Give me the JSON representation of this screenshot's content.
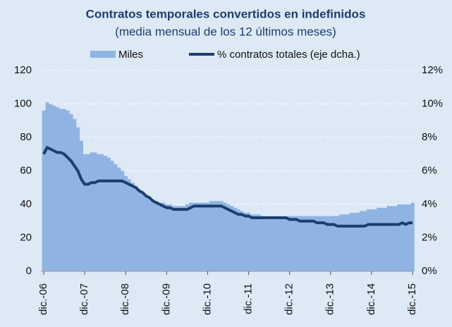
{
  "chart_data": {
    "type": "bar",
    "title": "Contratos temporales convertidos en indefinidos",
    "subtitle": "(media mensual de los 12 últimos meses)",
    "categories": [
      "dic.-06",
      null,
      null,
      null,
      null,
      null,
      null,
      null,
      null,
      null,
      null,
      null,
      "dic.-07",
      null,
      null,
      null,
      null,
      null,
      null,
      null,
      null,
      null,
      null,
      null,
      "dic.-08",
      null,
      null,
      null,
      null,
      null,
      null,
      null,
      null,
      null,
      null,
      null,
      "dic.-09",
      null,
      null,
      null,
      null,
      null,
      null,
      null,
      null,
      null,
      null,
      null,
      "dic.-10",
      null,
      null,
      null,
      null,
      null,
      null,
      null,
      null,
      null,
      null,
      null,
      "dic.-11",
      null,
      null,
      null,
      null,
      null,
      null,
      null,
      null,
      null,
      null,
      null,
      "dic.-12",
      null,
      null,
      null,
      null,
      null,
      null,
      null,
      null,
      null,
      null,
      null,
      "dic.-13",
      null,
      null,
      null,
      null,
      null,
      null,
      null,
      null,
      null,
      null,
      null,
      "dic.-14",
      null,
      null,
      null,
      null,
      null,
      null,
      null,
      null,
      null,
      null,
      null,
      "dic.-15"
    ],
    "series": [
      {
        "name": "Miles",
        "type": "bar",
        "color": "#8fb4e3",
        "values": [
          96,
          101,
          100,
          99,
          98,
          97,
          97,
          96,
          94,
          91,
          86,
          78,
          70,
          70,
          71,
          71,
          70,
          70,
          69,
          68,
          66,
          64,
          62,
          60,
          57,
          55,
          53,
          51,
          49,
          47,
          45,
          44,
          43,
          42,
          41,
          41,
          40,
          40,
          39,
          39,
          39,
          39,
          40,
          41,
          41,
          41,
          41,
          41,
          41,
          42,
          42,
          42,
          42,
          41,
          40,
          39,
          38,
          37,
          36,
          35,
          35,
          34,
          34,
          34,
          33,
          33,
          33,
          33,
          33,
          33,
          33,
          33,
          33,
          33,
          33,
          33,
          33,
          33,
          33,
          33,
          33,
          33,
          33,
          33,
          33,
          33,
          33,
          34,
          34,
          34,
          35,
          35,
          35,
          36,
          36,
          37,
          37,
          37,
          38,
          38,
          38,
          39,
          39,
          39,
          40,
          40,
          40,
          40,
          41
        ]
      },
      {
        "name": "% contratos totales (eje dcha.)",
        "type": "line",
        "axis": "y2",
        "color": "#1c3d6e",
        "values": [
          7.0,
          7.4,
          7.3,
          7.2,
          7.1,
          7.1,
          7.0,
          6.8,
          6.6,
          6.3,
          6.0,
          5.5,
          5.2,
          5.2,
          5.3,
          5.3,
          5.4,
          5.4,
          5.4,
          5.4,
          5.4,
          5.4,
          5.4,
          5.4,
          5.3,
          5.2,
          5.1,
          5.0,
          4.8,
          4.7,
          4.5,
          4.4,
          4.2,
          4.1,
          4.0,
          3.9,
          3.8,
          3.8,
          3.7,
          3.7,
          3.7,
          3.7,
          3.7,
          3.8,
          3.9,
          3.9,
          3.9,
          3.9,
          3.9,
          3.9,
          3.9,
          3.9,
          3.9,
          3.8,
          3.7,
          3.6,
          3.5,
          3.4,
          3.4,
          3.3,
          3.3,
          3.2,
          3.2,
          3.2,
          3.2,
          3.2,
          3.2,
          3.2,
          3.2,
          3.2,
          3.2,
          3.2,
          3.1,
          3.1,
          3.1,
          3.0,
          3.0,
          3.0,
          3.0,
          3.0,
          2.9,
          2.9,
          2.9,
          2.8,
          2.8,
          2.8,
          2.7,
          2.7,
          2.7,
          2.7,
          2.7,
          2.7,
          2.7,
          2.7,
          2.7,
          2.8,
          2.8,
          2.8,
          2.8,
          2.8,
          2.8,
          2.8,
          2.8,
          2.8,
          2.8,
          2.9,
          2.8,
          2.9,
          2.9
        ]
      }
    ],
    "ylim": [
      0,
      120
    ],
    "yticks": [
      0,
      20,
      40,
      60,
      80,
      100,
      120
    ],
    "y2lim": [
      0,
      12
    ],
    "y2ticks": [
      {
        "value": 0,
        "label": "0%"
      },
      {
        "value": 2,
        "label": "2%"
      },
      {
        "value": 4,
        "label": "4%"
      },
      {
        "value": 6,
        "label": "6%"
      },
      {
        "value": 8,
        "label": "8%"
      },
      {
        "value": 10,
        "label": "10%"
      },
      {
        "value": 12,
        "label": "12%"
      }
    ],
    "grid": true
  }
}
